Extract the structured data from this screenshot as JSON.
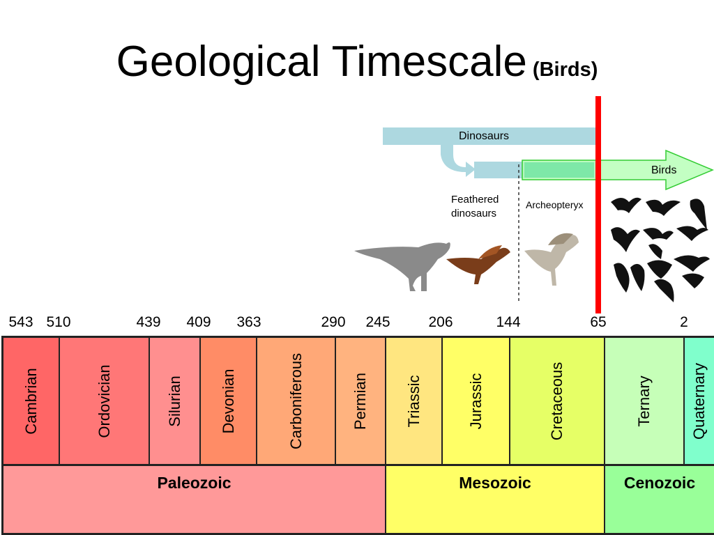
{
  "title": {
    "main": "Geological Timescale",
    "sub": "(Birds)"
  },
  "ticks": [
    "543",
    "510",
    "439",
    "409",
    "363",
    "290",
    "245",
    "206",
    "144",
    "65",
    "2"
  ],
  "periods": [
    {
      "name": "Cambrian",
      "color": "#ff6666"
    },
    {
      "name": "Ordovician",
      "color": "#ff7777"
    },
    {
      "name": "Silurian",
      "color": "#ff8f8f"
    },
    {
      "name": "Devonian",
      "color": "#ff8c66"
    },
    {
      "name": "Carboniferous",
      "color": "#ffa877"
    },
    {
      "name": "Permian",
      "color": "#ffb37f"
    },
    {
      "name": "Triassic",
      "color": "#ffe680"
    },
    {
      "name": "Jurassic",
      "color": "#ffff66"
    },
    {
      "name": "Cretaceous",
      "color": "#e6ff66"
    },
    {
      "name": "Ternary",
      "color": "#c6ffb8"
    },
    {
      "name": "Quaternary",
      "color": "#80ffcc"
    }
  ],
  "eras": [
    {
      "name": "Paleozoic",
      "color": "#ff9999"
    },
    {
      "name": "Mesozoic",
      "color": "#ffff66"
    },
    {
      "name": "Cenozoic",
      "color": "#99ff99"
    }
  ],
  "labels": {
    "dinosaurs": "Dinosaurs",
    "birds": "Birds",
    "feathered_line1": "Feathered",
    "feathered_line2": "dinosaurs",
    "archeopteryx": "Archeopteryx"
  },
  "colors": {
    "dinosaur_bar": "#add8e0",
    "birds_arrow_fill": "#b8ffb8",
    "birds_arrow_stroke": "#33cc33",
    "extinction_line": "#ff0000"
  }
}
